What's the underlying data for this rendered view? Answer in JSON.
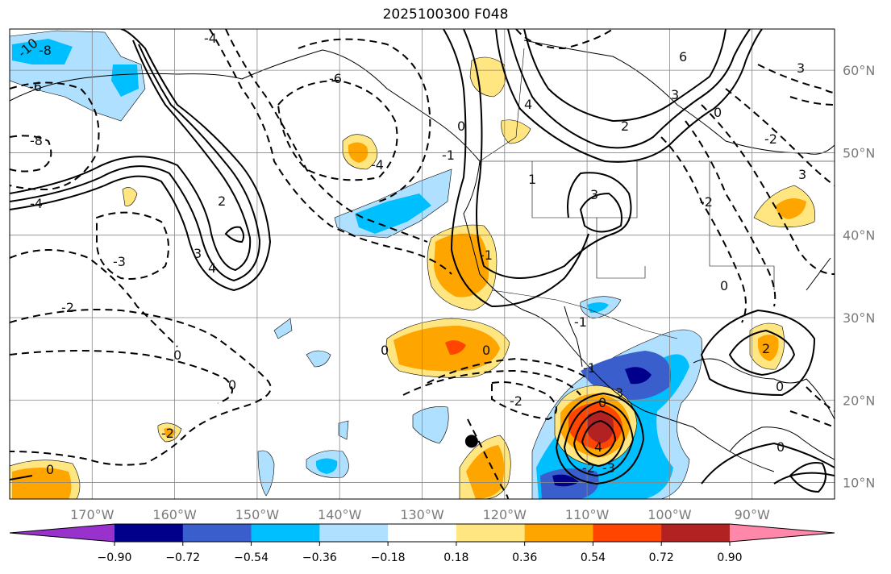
{
  "title": "2025100300 F048",
  "map": {
    "lon_range": [
      -180,
      -80
    ],
    "lat_range": [
      8,
      65
    ],
    "lon_ticks": [
      {
        "value": -170,
        "label": "170°W"
      },
      {
        "value": -160,
        "label": "160°W"
      },
      {
        "value": -150,
        "label": "150°W"
      },
      {
        "value": -140,
        "label": "140°W"
      },
      {
        "value": -130,
        "label": "130°W"
      },
      {
        "value": -120,
        "label": "120°W"
      },
      {
        "value": -110,
        "label": "110°W"
      },
      {
        "value": -100,
        "label": "100°W"
      },
      {
        "value": -90,
        "label": "90°W"
      }
    ],
    "lat_ticks": [
      {
        "value": 60,
        "label": "60°N"
      },
      {
        "value": 50,
        "label": "50°N"
      },
      {
        "value": 40,
        "label": "40°N"
      },
      {
        "value": 30,
        "label": "30°N"
      },
      {
        "value": 20,
        "label": "20°N"
      },
      {
        "value": 10,
        "label": "10°N"
      }
    ],
    "contour_labels": [
      "-10",
      "-8",
      "-6",
      "-4",
      "-3",
      "-2",
      "-1",
      "0",
      "1",
      "2",
      "3",
      "4",
      "6",
      "8"
    ],
    "marker": {
      "name": "black dot",
      "lon": -124,
      "lat": 15
    }
  },
  "colorbar": {
    "levels": [
      -0.9,
      -0.72,
      -0.54,
      -0.36,
      -0.18,
      0.18,
      0.36,
      0.54,
      0.72,
      0.9
    ],
    "tick_labels": [
      "−0.90",
      "−0.72",
      "−0.54",
      "−0.36",
      "−0.18",
      "0.18",
      "0.36",
      "0.54",
      "0.72",
      "0.90"
    ],
    "colors": [
      "#9932cc",
      "#00008b",
      "#3a5fcd",
      "#00bfff",
      "#b0e0ff",
      "#ffffff",
      "#ffe680",
      "#ffa500",
      "#ff4500",
      "#b22222",
      "#ff88aa"
    ]
  }
}
